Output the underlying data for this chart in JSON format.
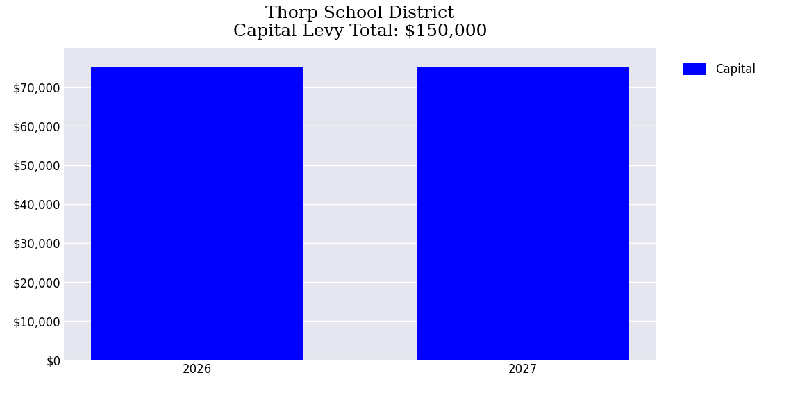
{
  "title_line1": "Thorp School District",
  "title_line2": "Capital Levy Total: $150,000",
  "categories": [
    "2026",
    "2027"
  ],
  "values": [
    75000,
    75000
  ],
  "bar_color": "#0000FF",
  "legend_label": "Capital",
  "yticks": [
    0,
    10000,
    20000,
    30000,
    40000,
    50000,
    60000,
    70000
  ],
  "ylim": [
    0,
    80000
  ],
  "axes_facecolor": "#E6E6F0",
  "figure_facecolor": "#FFFFFF",
  "title_fontsize": 18,
  "tick_fontsize": 12,
  "legend_fontsize": 12,
  "bar_width": 0.65
}
